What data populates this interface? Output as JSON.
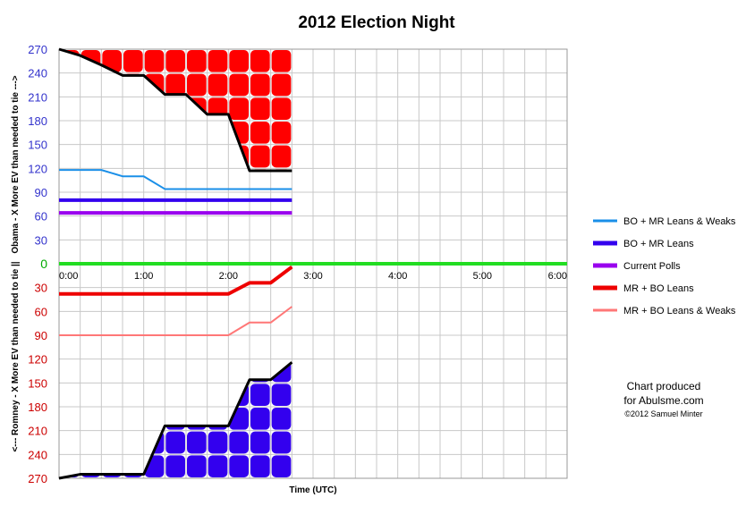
{
  "chart_data": {
    "type": "line",
    "title": "2012 Election Night",
    "xlabel": "Time (UTC)",
    "ylabel_top": "Obama - X More EV than needed to tie --->",
    "ylabel_bottom": "<--- Romney - X More EV than needed to tie ||",
    "y_ticks_top": [
      "270",
      "240",
      "210",
      "180",
      "150",
      "120",
      "90",
      "60",
      "30"
    ],
    "y_tick_zero": "0",
    "y_ticks_bottom": [
      "30",
      "60",
      "90",
      "120",
      "150",
      "180",
      "210",
      "240",
      "270"
    ],
    "x_ticks": [
      "0:00",
      "1:00",
      "2:00",
      "3:00",
      "4:00",
      "5:00",
      "6:00"
    ],
    "x_range_hours": [
      0,
      6
    ],
    "y_range": [
      -270,
      270
    ],
    "grid": true,
    "legend_position": "right",
    "series": [
      {
        "name": "BO + MR Leans & Weaks",
        "color": "#1a8fe8",
        "width": 2,
        "x": [
          0,
          0.5,
          0.75,
          1.0,
          1.25,
          2.75
        ],
        "y": [
          118,
          118,
          110,
          110,
          94,
          94
        ]
      },
      {
        "name": "BO + MR Leans",
        "color": "#3300ee",
        "width": 4,
        "x": [
          0,
          2.75
        ],
        "y": [
          80,
          80
        ]
      },
      {
        "name": "Current Polls",
        "color": "#9900ee",
        "width": 4,
        "x": [
          0,
          2.75
        ],
        "y": [
          64,
          64
        ]
      },
      {
        "name": "MR + BO Leans",
        "color": "#ee0000",
        "width": 4,
        "x": [
          0,
          2.0,
          2.25,
          2.5,
          2.75
        ],
        "y": [
          -38,
          -38,
          -24,
          -24,
          -4
        ]
      },
      {
        "name": "MR + BO Leans & Weaks",
        "color": "#ff7777",
        "width": 2,
        "x": [
          0,
          2.0,
          2.25,
          2.5,
          2.75
        ],
        "y": [
          -90,
          -90,
          -74,
          -74,
          -54
        ]
      }
    ],
    "zero_line": {
      "color": "#22dd22",
      "x": [
        0,
        6
      ],
      "y": [
        0,
        0
      ]
    },
    "obama_envelope": {
      "color": "#000000",
      "x": [
        0,
        0.25,
        0.5,
        0.75,
        1.0,
        1.25,
        1.5,
        1.75,
        2.0,
        2.25,
        2.5,
        2.75
      ],
      "y": [
        270,
        262,
        250,
        237,
        237,
        213,
        213,
        188,
        188,
        117,
        117,
        117
      ]
    },
    "romney_envelope": {
      "color": "#000000",
      "x": [
        0,
        0.25,
        0.5,
        0.75,
        1.0,
        1.25,
        1.5,
        1.75,
        2.0,
        2.25,
        2.5,
        2.75
      ],
      "y": [
        -270,
        -265,
        -265,
        -265,
        -265,
        -204,
        -204,
        -204,
        -204,
        -146,
        -146,
        -124
      ]
    },
    "obama_fill_color": "#ff0000",
    "romney_fill_color": "#3300ee"
  },
  "credit": {
    "line1": "Chart produced",
    "line2": "for Abulsme.com",
    "line3": "©2012 Samuel Minter"
  }
}
